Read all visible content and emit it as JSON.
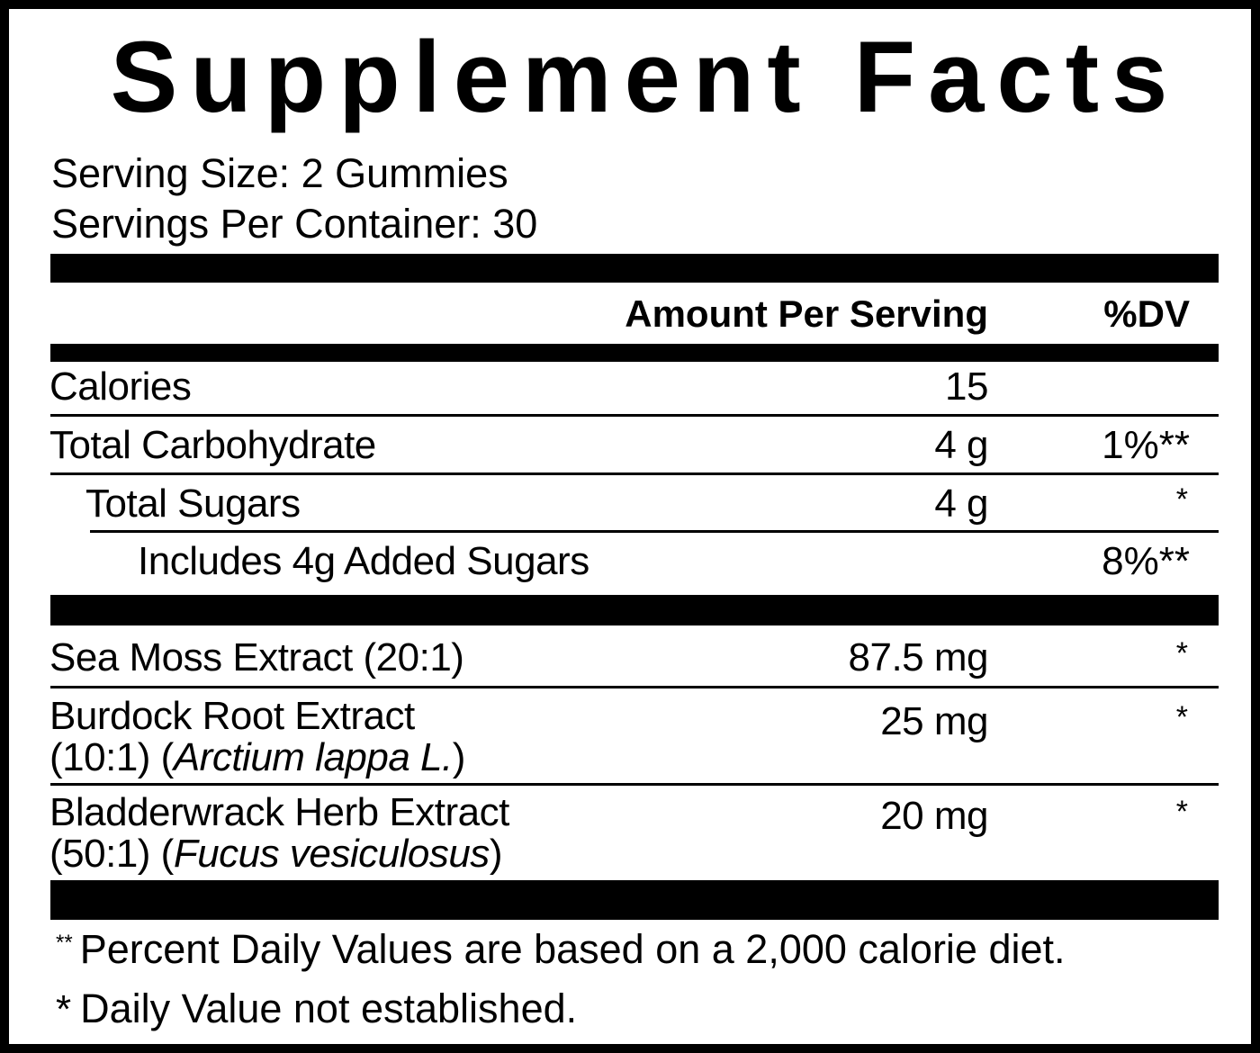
{
  "title": "Supplement Facts",
  "serving_size": "Serving Size: 2 Gummies",
  "servings_per_container": "Servings Per Container: 30",
  "header": {
    "amount": "Amount Per Serving",
    "dv": "%DV"
  },
  "nutrients": [
    {
      "name": "Calories",
      "amount": "15",
      "dv": ""
    },
    {
      "name": "Total Carbohydrate",
      "amount": "4 g",
      "dv": "1%**"
    },
    {
      "name": "Total Sugars",
      "amount": "4 g",
      "dv": "*"
    },
    {
      "name": "Includes 4g Added Sugars",
      "amount": "",
      "dv": "8%**"
    }
  ],
  "ingredients": [
    {
      "name": "Sea Moss Extract (20:1)",
      "amount": "87.5 mg",
      "dv": "*"
    },
    {
      "name_line1": "Burdock Root Extract",
      "name_line2_prefix": "(10:1) (",
      "name_line2_latin": "Arctium lappa L.",
      "name_line2_suffix": ")",
      "amount": "25 mg",
      "dv": "*"
    },
    {
      "name_line1": "Bladderwrack Herb Extract",
      "name_line2_prefix": "(50:1) (",
      "name_line2_latin": "Fucus vesiculosus",
      "name_line2_suffix": ")",
      "amount": "20 mg",
      "dv": "*"
    }
  ],
  "footnotes": {
    "dv_marker": "**",
    "dv_text": "Percent Daily Values are based on a 2,000 calorie diet.",
    "na_marker": "*",
    "na_text": "Daily Value not established."
  }
}
